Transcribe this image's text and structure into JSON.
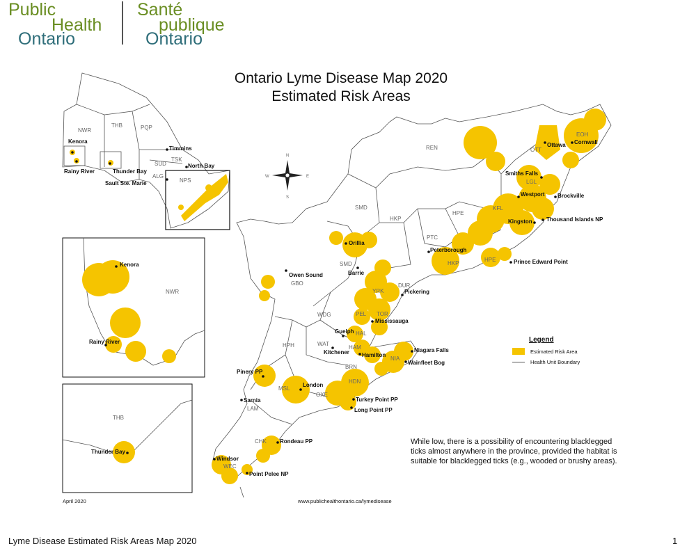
{
  "logo": {
    "en_line1": "Public",
    "en_line2": "Health",
    "en_line3": "Ontario",
    "fr_line1": "Santé",
    "fr_line2": "publique",
    "fr_line3": "Ontario"
  },
  "title": {
    "line1": "Ontario Lyme Disease Map 2020",
    "line2": "Estimated Risk Areas"
  },
  "legend": {
    "title": "Legend",
    "risk_area": "Estimated Risk Area",
    "boundary": "Health Unit Boundary"
  },
  "note": "While low, there is a possibility of encountering blacklegged ticks almost anywhere in the province, provided the habitat is suitable for blacklegged ticks (e.g., wooded or brushy areas).",
  "date": "April 2020",
  "url": "www.publichealthontario.ca/lymedisease",
  "footer": {
    "caption": "Lyme Disease Estimated Risk Areas Map 2020",
    "page": "1"
  },
  "compass": {
    "n": "N",
    "s": "S",
    "e": "E",
    "w": "W"
  },
  "colors": {
    "risk": "#f5c400",
    "boundary": "#555555"
  },
  "places": {
    "kenora": "Kenora",
    "rainy_river": "Rainy River",
    "thunder_bay": "Thunder Bay",
    "sault": "Sault Ste. Marie",
    "timmins": "Timmins",
    "north_bay": "North Bay",
    "ottawa": "Ottawa",
    "cornwall": "Cornwall",
    "smiths_falls": "Smiths Falls",
    "westport": "Westport",
    "brockville": "Brockville",
    "kingston": "Kingston",
    "thousand_islands": "Thousand Islands NP",
    "peterborough": "Peterborough",
    "prince_edward": "Prince Edward Point",
    "orillia": "Orillia",
    "barrie": "Barrie",
    "owen_sound": "Owen Sound",
    "pickering": "Pickering",
    "mississauga": "Mississauga",
    "guelph": "Guelph",
    "kitchener": "Kitchener",
    "hamilton": "Hamilton",
    "niagara_falls": "Niagara Falls",
    "wainfleet": "Wainfleet Bog",
    "pinery": "Pinery PP",
    "london": "London",
    "sarnia": "Sarnia",
    "turkey_point": "Turkey Point PP",
    "long_point": "Long Point PP",
    "rondeau": "Rondeau PP",
    "windsor": "Windsor",
    "point_pelee": "Point Pelee NP"
  },
  "health_units": {
    "NWR": "NWR",
    "THB": "THB",
    "PQP": "PQP",
    "SUD": "SUD",
    "TSK": "TSK",
    "ALG": "ALG",
    "NPS": "NPS",
    "EOH": "EOH",
    "OTT": "OTT",
    "REN": "REN",
    "LGL": "LGL",
    "KFL": "KFL",
    "HPE": "HPE",
    "SMD": "SMD",
    "HKP": "HKP",
    "PTC": "PTC",
    "DUR": "DUR",
    "YRK": "YRK",
    "TOR": "TOR",
    "PEL": "PEL",
    "GBO": "GBO",
    "WDG": "WDG",
    "HAL": "HAL",
    "HAM": "HAM",
    "WAT": "WAT",
    "NIA": "NIA",
    "BRN": "BRN",
    "HPH": "HPH",
    "HDN": "HDN",
    "OXE": "OXE",
    "MSL": "MSL",
    "LAM": "LAM",
    "CHK": "CHK",
    "WEC": "WEC"
  }
}
